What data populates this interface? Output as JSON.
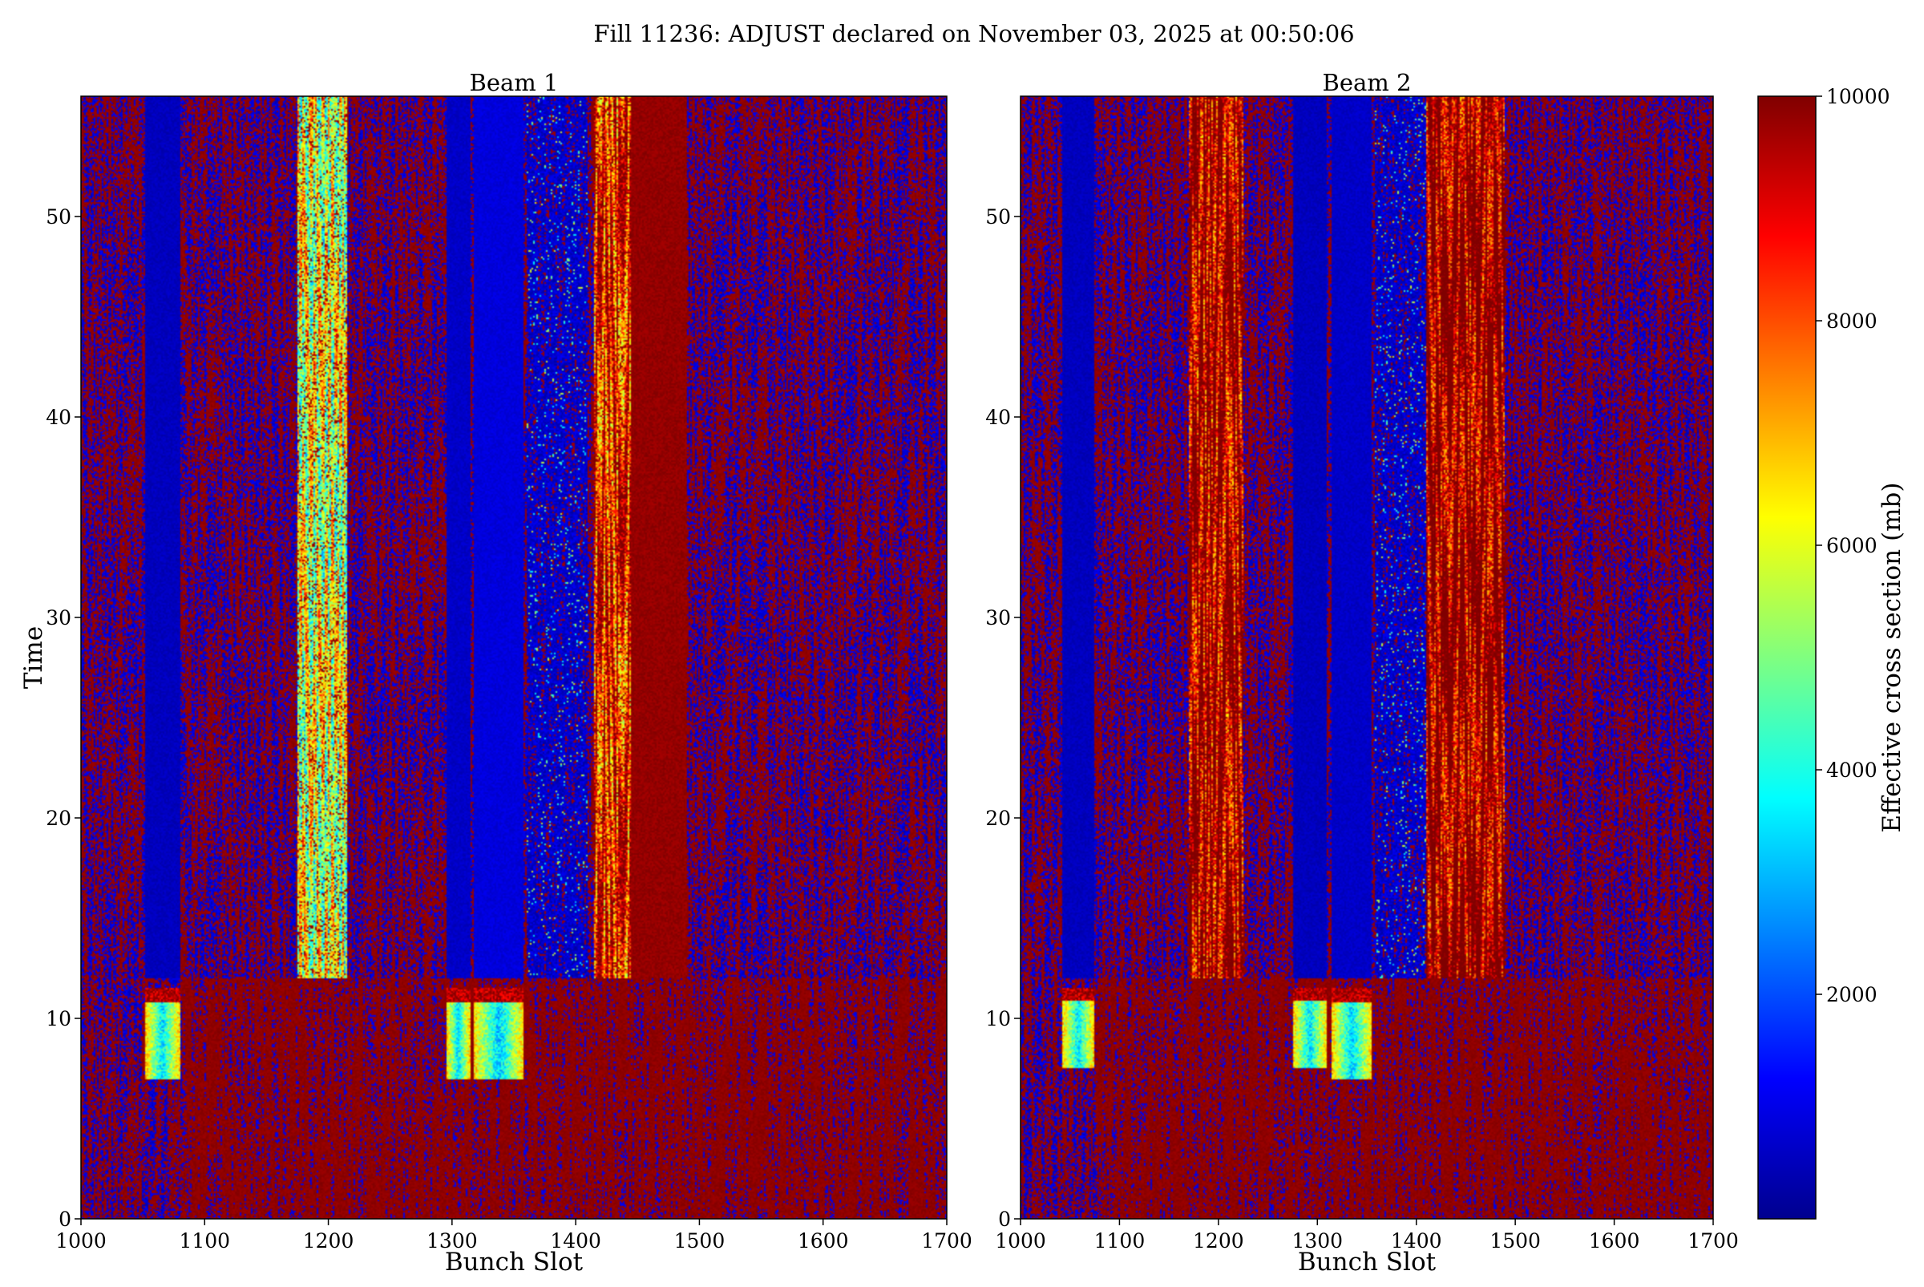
{
  "figure": {
    "title": "Fill 11236: ADJUST declared on November 03, 2025 at 00:50:06"
  },
  "colorbar": {
    "label": "Effective cross section (mb)",
    "ticks": [
      "2000",
      "4000",
      "6000",
      "8000",
      "10000"
    ],
    "colormap": "jet",
    "min": 0,
    "max": 10000
  },
  "chart_data": [
    {
      "type": "heatmap",
      "title": "Beam 1",
      "xlabel": "Bunch Slot",
      "ylabel": "Time",
      "xlim": [
        1000,
        1700
      ],
      "ylim": [
        0,
        56
      ],
      "x_ticks": [
        "1000",
        "1100",
        "1200",
        "1300",
        "1400",
        "1500",
        "1600",
        "1700"
      ],
      "y_ticks": [
        "0",
        "10",
        "20",
        "30",
        "40",
        "50"
      ],
      "value_scale": "0-10000 mb",
      "regions": [
        {
          "x": [
            1000,
            1700
          ],
          "y": [
            0,
            56
          ],
          "pattern": "noise",
          "mix_high": 0.55
        },
        {
          "x": [
            1052,
            1080
          ],
          "y": [
            12,
            56
          ],
          "pattern": "uniform",
          "value": 600
        },
        {
          "x": [
            1052,
            1080
          ],
          "y": [
            7,
            11.5
          ],
          "pattern": "ushape",
          "value": 3500
        },
        {
          "x": [
            1082,
            1700
          ],
          "y": [
            0,
            12
          ],
          "pattern": "noise",
          "mix_high": 0.75
        },
        {
          "x": [
            1175,
            1215
          ],
          "y": [
            12,
            56
          ],
          "pattern": "band",
          "value": 5500
        },
        {
          "x": [
            1295,
            1315
          ],
          "y": [
            12,
            56
          ],
          "pattern": "uniform",
          "value": 700
        },
        {
          "x": [
            1295,
            1315
          ],
          "y": [
            7,
            11.5
          ],
          "pattern": "ushape",
          "value": 3500
        },
        {
          "x": [
            1318,
            1358
          ],
          "y": [
            12,
            56
          ],
          "pattern": "uniform",
          "value": 900
        },
        {
          "x": [
            1318,
            1358
          ],
          "y": [
            7,
            11.5
          ],
          "pattern": "ushape",
          "value": 3200
        },
        {
          "x": [
            1360,
            1410
          ],
          "y": [
            12,
            56
          ],
          "pattern": "noise",
          "mix_high": 0.2
        },
        {
          "x": [
            1415,
            1445
          ],
          "y": [
            12,
            56
          ],
          "pattern": "band",
          "value": 8200
        },
        {
          "x": [
            1445,
            1490
          ],
          "y": [
            12,
            56
          ],
          "pattern": "uniform",
          "value": 9800
        }
      ]
    },
    {
      "type": "heatmap",
      "title": "Beam 2",
      "xlabel": "Bunch Slot",
      "ylabel": "",
      "xlim": [
        1000,
        1700
      ],
      "ylim": [
        0,
        56
      ],
      "x_ticks": [
        "1000",
        "1100",
        "1200",
        "1300",
        "1400",
        "1500",
        "1600",
        "1700"
      ],
      "y_ticks": [
        "0",
        "10",
        "20",
        "30",
        "40",
        "50"
      ],
      "value_scale": "0-10000 mb",
      "regions": [
        {
          "x": [
            1000,
            1700
          ],
          "y": [
            0,
            56
          ],
          "pattern": "noise",
          "mix_high": 0.55
        },
        {
          "x": [
            1042,
            1075
          ],
          "y": [
            12,
            56
          ],
          "pattern": "uniform",
          "value": 600
        },
        {
          "x": [
            1042,
            1075
          ],
          "y": [
            7.5,
            11.5
          ],
          "pattern": "ushape",
          "value": 3600
        },
        {
          "x": [
            1078,
            1700
          ],
          "y": [
            0,
            12
          ],
          "pattern": "noise",
          "mix_high": 0.75
        },
        {
          "x": [
            1170,
            1225
          ],
          "y": [
            12,
            56
          ],
          "pattern": "band",
          "value": 9300
        },
        {
          "x": [
            1275,
            1310
          ],
          "y": [
            12,
            56
          ],
          "pattern": "uniform",
          "value": 600
        },
        {
          "x": [
            1275,
            1310
          ],
          "y": [
            7.5,
            11.5
          ],
          "pattern": "ushape",
          "value": 3500
        },
        {
          "x": [
            1315,
            1355
          ],
          "y": [
            12,
            56
          ],
          "pattern": "uniform",
          "value": 700
        },
        {
          "x": [
            1315,
            1355
          ],
          "y": [
            7,
            11.5
          ],
          "pattern": "ushape",
          "value": 3300
        },
        {
          "x": [
            1358,
            1410
          ],
          "y": [
            12,
            56
          ],
          "pattern": "noise",
          "mix_high": 0.2
        },
        {
          "x": [
            1410,
            1490
          ],
          "y": [
            12,
            56
          ],
          "pattern": "band",
          "value": 9600
        }
      ]
    }
  ]
}
